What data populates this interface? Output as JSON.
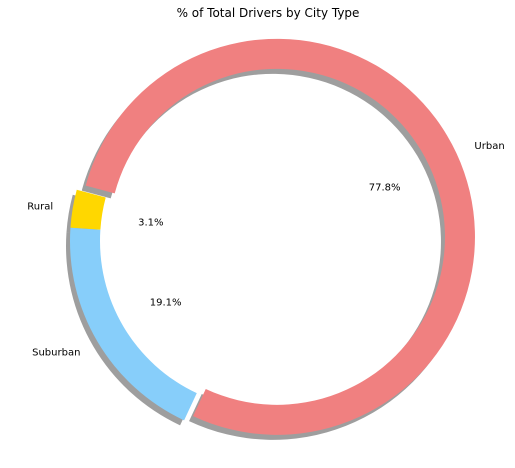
{
  "chart_data": {
    "type": "pie",
    "title": "% of Total Drivers by City Type",
    "donut": true,
    "shadow": true,
    "labels": [
      "Rural",
      "Suburban",
      "Urban"
    ],
    "values": [
      3.1,
      19.1,
      77.8
    ],
    "percent_labels": [
      "3.1%",
      "19.1%",
      "77.8%"
    ],
    "colors": [
      "#ffd700",
      "#87cefa",
      "#f08080"
    ],
    "explode": [
      0,
      0,
      0.05
    ],
    "start_angle_deg": 165
  }
}
